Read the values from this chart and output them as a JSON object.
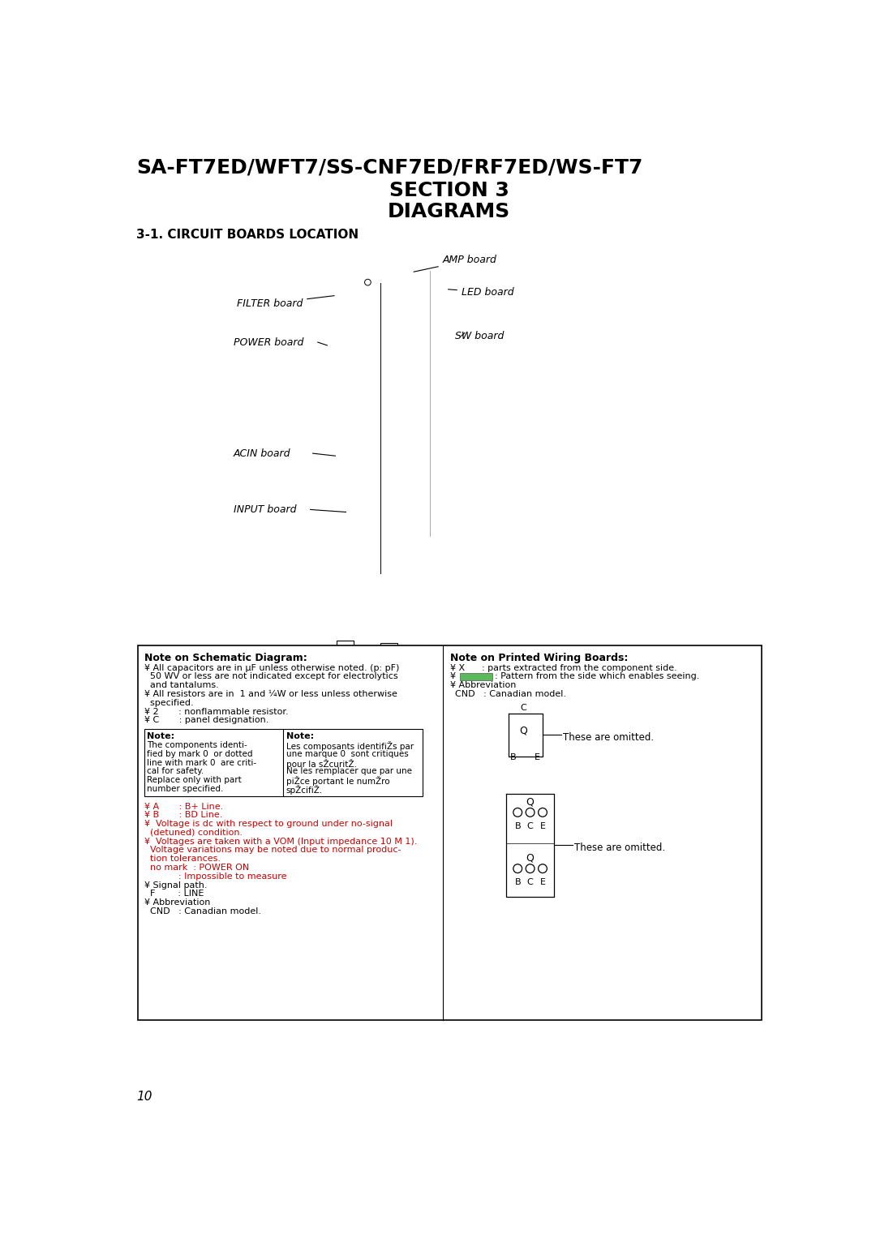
{
  "title_line1": "SA-FT7ED/WFT7/SS-CNF7ED/FRF7ED/WS-FT7",
  "title_line2": "SECTION 3",
  "title_line3": "DIAGRAMS",
  "section_title": "3-1. CIRCUIT BOARDS LOCATION",
  "page_number": "10",
  "bg_color": "#ffffff",
  "red_color": "#cc0000",
  "green_color": "#5cb85c",
  "note_left_title": "Note on Schematic Diagram:",
  "note_left_lines": [
    "¥ All capacitors are in μF unless otherwise noted. (p: pF)",
    "  50 WV or less are not indicated except for electrolytics",
    "  and tantalums.",
    "¥ All resistors are in  1 and ¼W or less unless otherwise",
    "  specified.",
    "¥ 2       : nonflammable resistor.",
    "¥ C       : panel designation."
  ],
  "note_right_title": "Note on Printed Wiring Boards:",
  "note_right_lines_black": [
    "¥ X       : parts extracted from the component side.",
    "¥ Abbreviation",
    "  CND   : Canadian model."
  ],
  "inner_note_left_title": "Note:",
  "inner_note_left_lines": [
    "The components identi-",
    "fied by mark 0  or dotted",
    "line with mark 0  are criti-",
    "cal for safety.",
    "Replace only with part",
    "number specified."
  ],
  "inner_note_right_title": "Note:",
  "inner_note_right_lines": [
    "Les composants identifiŽs par",
    "une marque 0  sont critiques",
    "pour la sŽcuritŽ.",
    "Ne les remplacer que par une",
    "piŽce portant le numŽro",
    "spŽcifiŽ."
  ],
  "red_lines": [
    [
      "¥ A       : B+ Line.",
      false
    ],
    [
      "¥ B       : BD Line.",
      false
    ],
    [
      "¥  Voltage is dc with respect to ground under no-signal",
      false
    ],
    [
      "  (detuned) condition.",
      false
    ],
    [
      "¥  Voltages are taken with a VOM (Input impedance 10 M 1).",
      false
    ],
    [
      "  Voltage variations may be noted due to normal produc-",
      false
    ],
    [
      "  tion tolerances.",
      false
    ],
    [
      "  no mark  : POWER ON",
      false
    ],
    [
      "            : Impossible to measure",
      false
    ],
    [
      "¥ Signal path.",
      true
    ],
    [
      "  F        : LINE",
      true
    ],
    [
      "¥ Abbreviation",
      true
    ],
    [
      "  CND   : Canadian model.",
      true
    ]
  ]
}
